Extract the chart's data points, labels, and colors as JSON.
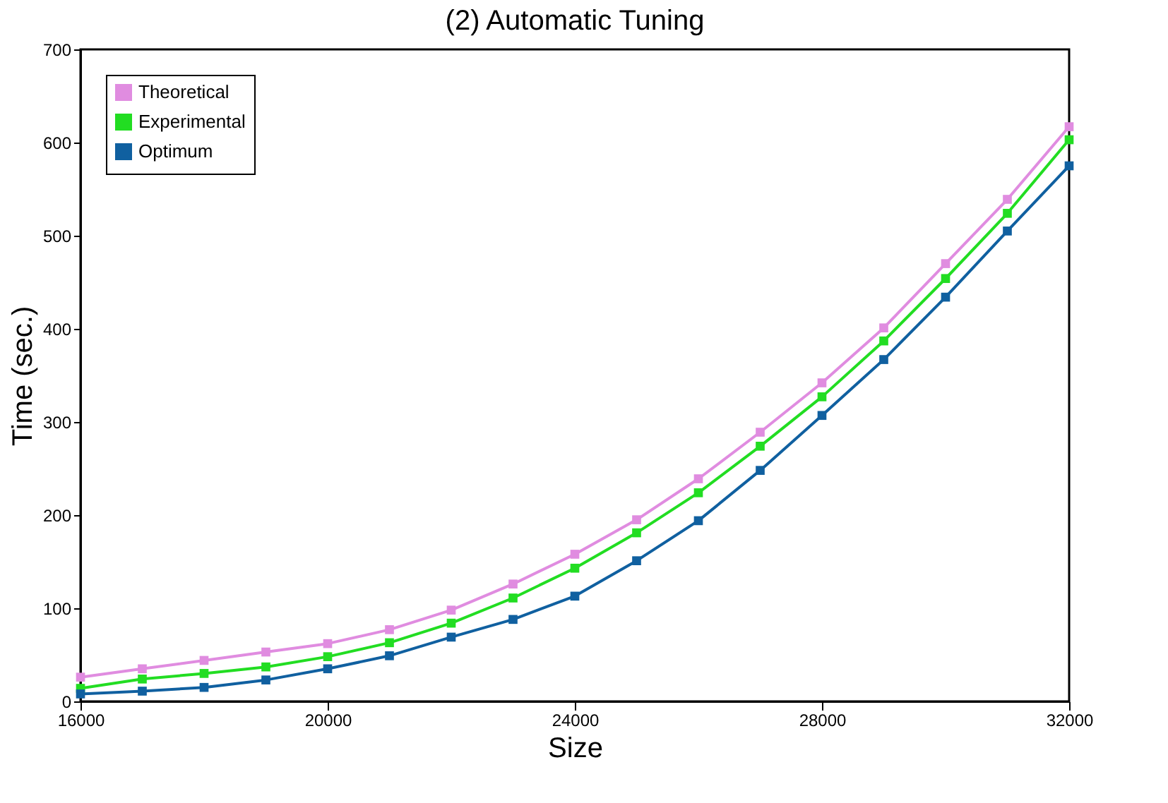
{
  "chart_data": {
    "type": "line",
    "title": "(2) Automatic Tuning",
    "xlabel": "Size",
    "ylabel": "Time (sec.)",
    "x": [
      16000,
      17000,
      18000,
      19000,
      20000,
      21000,
      22000,
      23000,
      24000,
      25000,
      26000,
      27000,
      28000,
      29000,
      30000,
      31000,
      32000
    ],
    "series": [
      {
        "name": "Theoretical",
        "color": "#e08ce0",
        "values": [
          26,
          35,
          44,
          53,
          62,
          77,
          98,
          126,
          158,
          195,
          239,
          289,
          342,
          401,
          470,
          539,
          617
        ]
      },
      {
        "name": "Experimental",
        "color": "#22dd22",
        "values": [
          14,
          24,
          30,
          37,
          48,
          63,
          84,
          111,
          143,
          181,
          224,
          274,
          327,
          387,
          454,
          524,
          603
        ]
      },
      {
        "name": "Optimum",
        "color": "#1060a0",
        "values": [
          8,
          11,
          15,
          23,
          35,
          49,
          69,
          88,
          113,
          151,
          194,
          248,
          307,
          367,
          434,
          505,
          575
        ]
      }
    ],
    "xlim": [
      16000,
      32000
    ],
    "xticks": [
      16000,
      20000,
      24000,
      28000,
      32000
    ],
    "ylim": [
      0,
      700
    ],
    "yticks": [
      0,
      100,
      200,
      300,
      400,
      500,
      600,
      700
    ],
    "grid": false,
    "legend": "top left",
    "marker": "square",
    "line_style": "solid"
  }
}
